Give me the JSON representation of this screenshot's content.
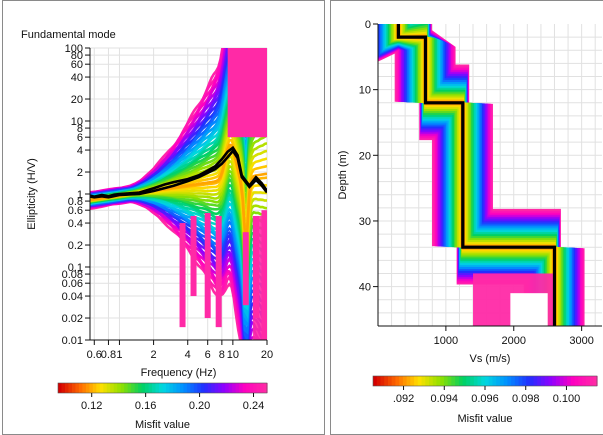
{
  "colors": {
    "misfit_scale": [
      "#d40000",
      "#ff6a00",
      "#ffe000",
      "#8fe000",
      "#00d060",
      "#00d8e0",
      "#0090ff",
      "#2030ff",
      "#9000ff",
      "#ff00c0",
      "#ff2aa6"
    ],
    "best_model": "#000000",
    "frame": "#8a8a8a"
  },
  "chart_data": [
    {
      "type": "line",
      "panel": "ellipticity",
      "title": "Fundamental mode",
      "xlabel": "Frequency (Hz)",
      "ylabel": "Ellipticity (H/V)",
      "x_scale": "log",
      "y_scale": "log",
      "xlim": [
        0.55,
        20
      ],
      "ylim": [
        0.01,
        100
      ],
      "x_tick_values": [
        0.6,
        0.8,
        1,
        2,
        4,
        6,
        8,
        10,
        20
      ],
      "x_tick_labels": [
        "0.6",
        "0.8",
        "1",
        "2",
        "4",
        "6",
        "8",
        "10",
        "20"
      ],
      "y_tick_values": [
        0.01,
        0.02,
        0.04,
        0.06,
        0.08,
        0.1,
        0.2,
        0.4,
        0.6,
        0.8,
        1,
        2,
        4,
        6,
        8,
        10,
        20,
        40,
        60,
        80,
        100
      ],
      "y_tick_labels": [
        "0.01",
        "0.02",
        "0.04",
        "0.06",
        "0.08",
        "0.1",
        "0.2",
        "0.4",
        "0.6",
        "0.8",
        "1",
        "2",
        "4",
        "6",
        "8",
        "10",
        "20",
        "40",
        "60",
        "80",
        "100"
      ],
      "grid": true,
      "series": [
        {
          "role": "best",
          "x": [
            0.55,
            0.6,
            0.7,
            0.8,
            0.9,
            1,
            1.2,
            1.5,
            2,
            2.5,
            3,
            4,
            5,
            6,
            7,
            8,
            9,
            10,
            11,
            12,
            14,
            16,
            18,
            20
          ],
          "y": [
            0.95,
            0.92,
            0.97,
            0.93,
            0.98,
            1.0,
            1.02,
            1.05,
            1.2,
            1.35,
            1.45,
            1.6,
            1.8,
            2.1,
            2.4,
            3.0,
            3.8,
            4.3,
            3.4,
            1.8,
            1.3,
            1.7,
            1.4,
            1.1
          ]
        },
        {
          "role": "best",
          "x": [
            0.55,
            0.6,
            0.7,
            0.8,
            1,
            1.5,
            2,
            3,
            4,
            5,
            6,
            7,
            8,
            9,
            10,
            11,
            12,
            14,
            16,
            18,
            20
          ],
          "y": [
            0.92,
            0.9,
            0.93,
            0.9,
            0.97,
            1.0,
            1.1,
            1.3,
            1.5,
            1.7,
            1.95,
            2.2,
            2.6,
            3.2,
            3.9,
            3.1,
            1.7,
            1.25,
            1.55,
            1.3,
            1.05
          ]
        }
      ],
      "colorbar": {
        "label": "Misfit value",
        "range": [
          0.095,
          0.25
        ],
        "tick_values": [
          0.12,
          0.16,
          0.2,
          0.24
        ],
        "tick_labels": [
          "0.12",
          "0.16",
          "0.20",
          "0.24"
        ]
      }
    },
    {
      "type": "line",
      "panel": "vs_profile",
      "title": "",
      "xlabel": "Vs (m/s)",
      "ylabel": "Depth (m)",
      "xlim": [
        0,
        3300
      ],
      "ylim": [
        0,
        46
      ],
      "y_inverted": true,
      "x_tick_values": [
        1000,
        2000,
        3000
      ],
      "x_tick_labels": [
        "1000",
        "2000",
        "3000"
      ],
      "y_tick_values": [
        0,
        10,
        20,
        30,
        40
      ],
      "y_tick_labels": [
        "0",
        "10",
        "20",
        "30",
        "40"
      ],
      "grid": true,
      "series": [
        {
          "role": "best",
          "x": [
            300,
            300,
            700,
            700,
            1250,
            1250,
            2600,
            2600
          ],
          "y": [
            0,
            2,
            2,
            12,
            12,
            34,
            34,
            46
          ]
        }
      ],
      "colorbar": {
        "label": "Misfit value",
        "range": [
          0.0905,
          0.1015
        ],
        "tick_values": [
          0.092,
          0.094,
          0.096,
          0.098,
          0.1
        ],
        "tick_labels": [
          ".092",
          "0.094",
          "0.096",
          "0.098",
          "0.100"
        ]
      }
    }
  ]
}
